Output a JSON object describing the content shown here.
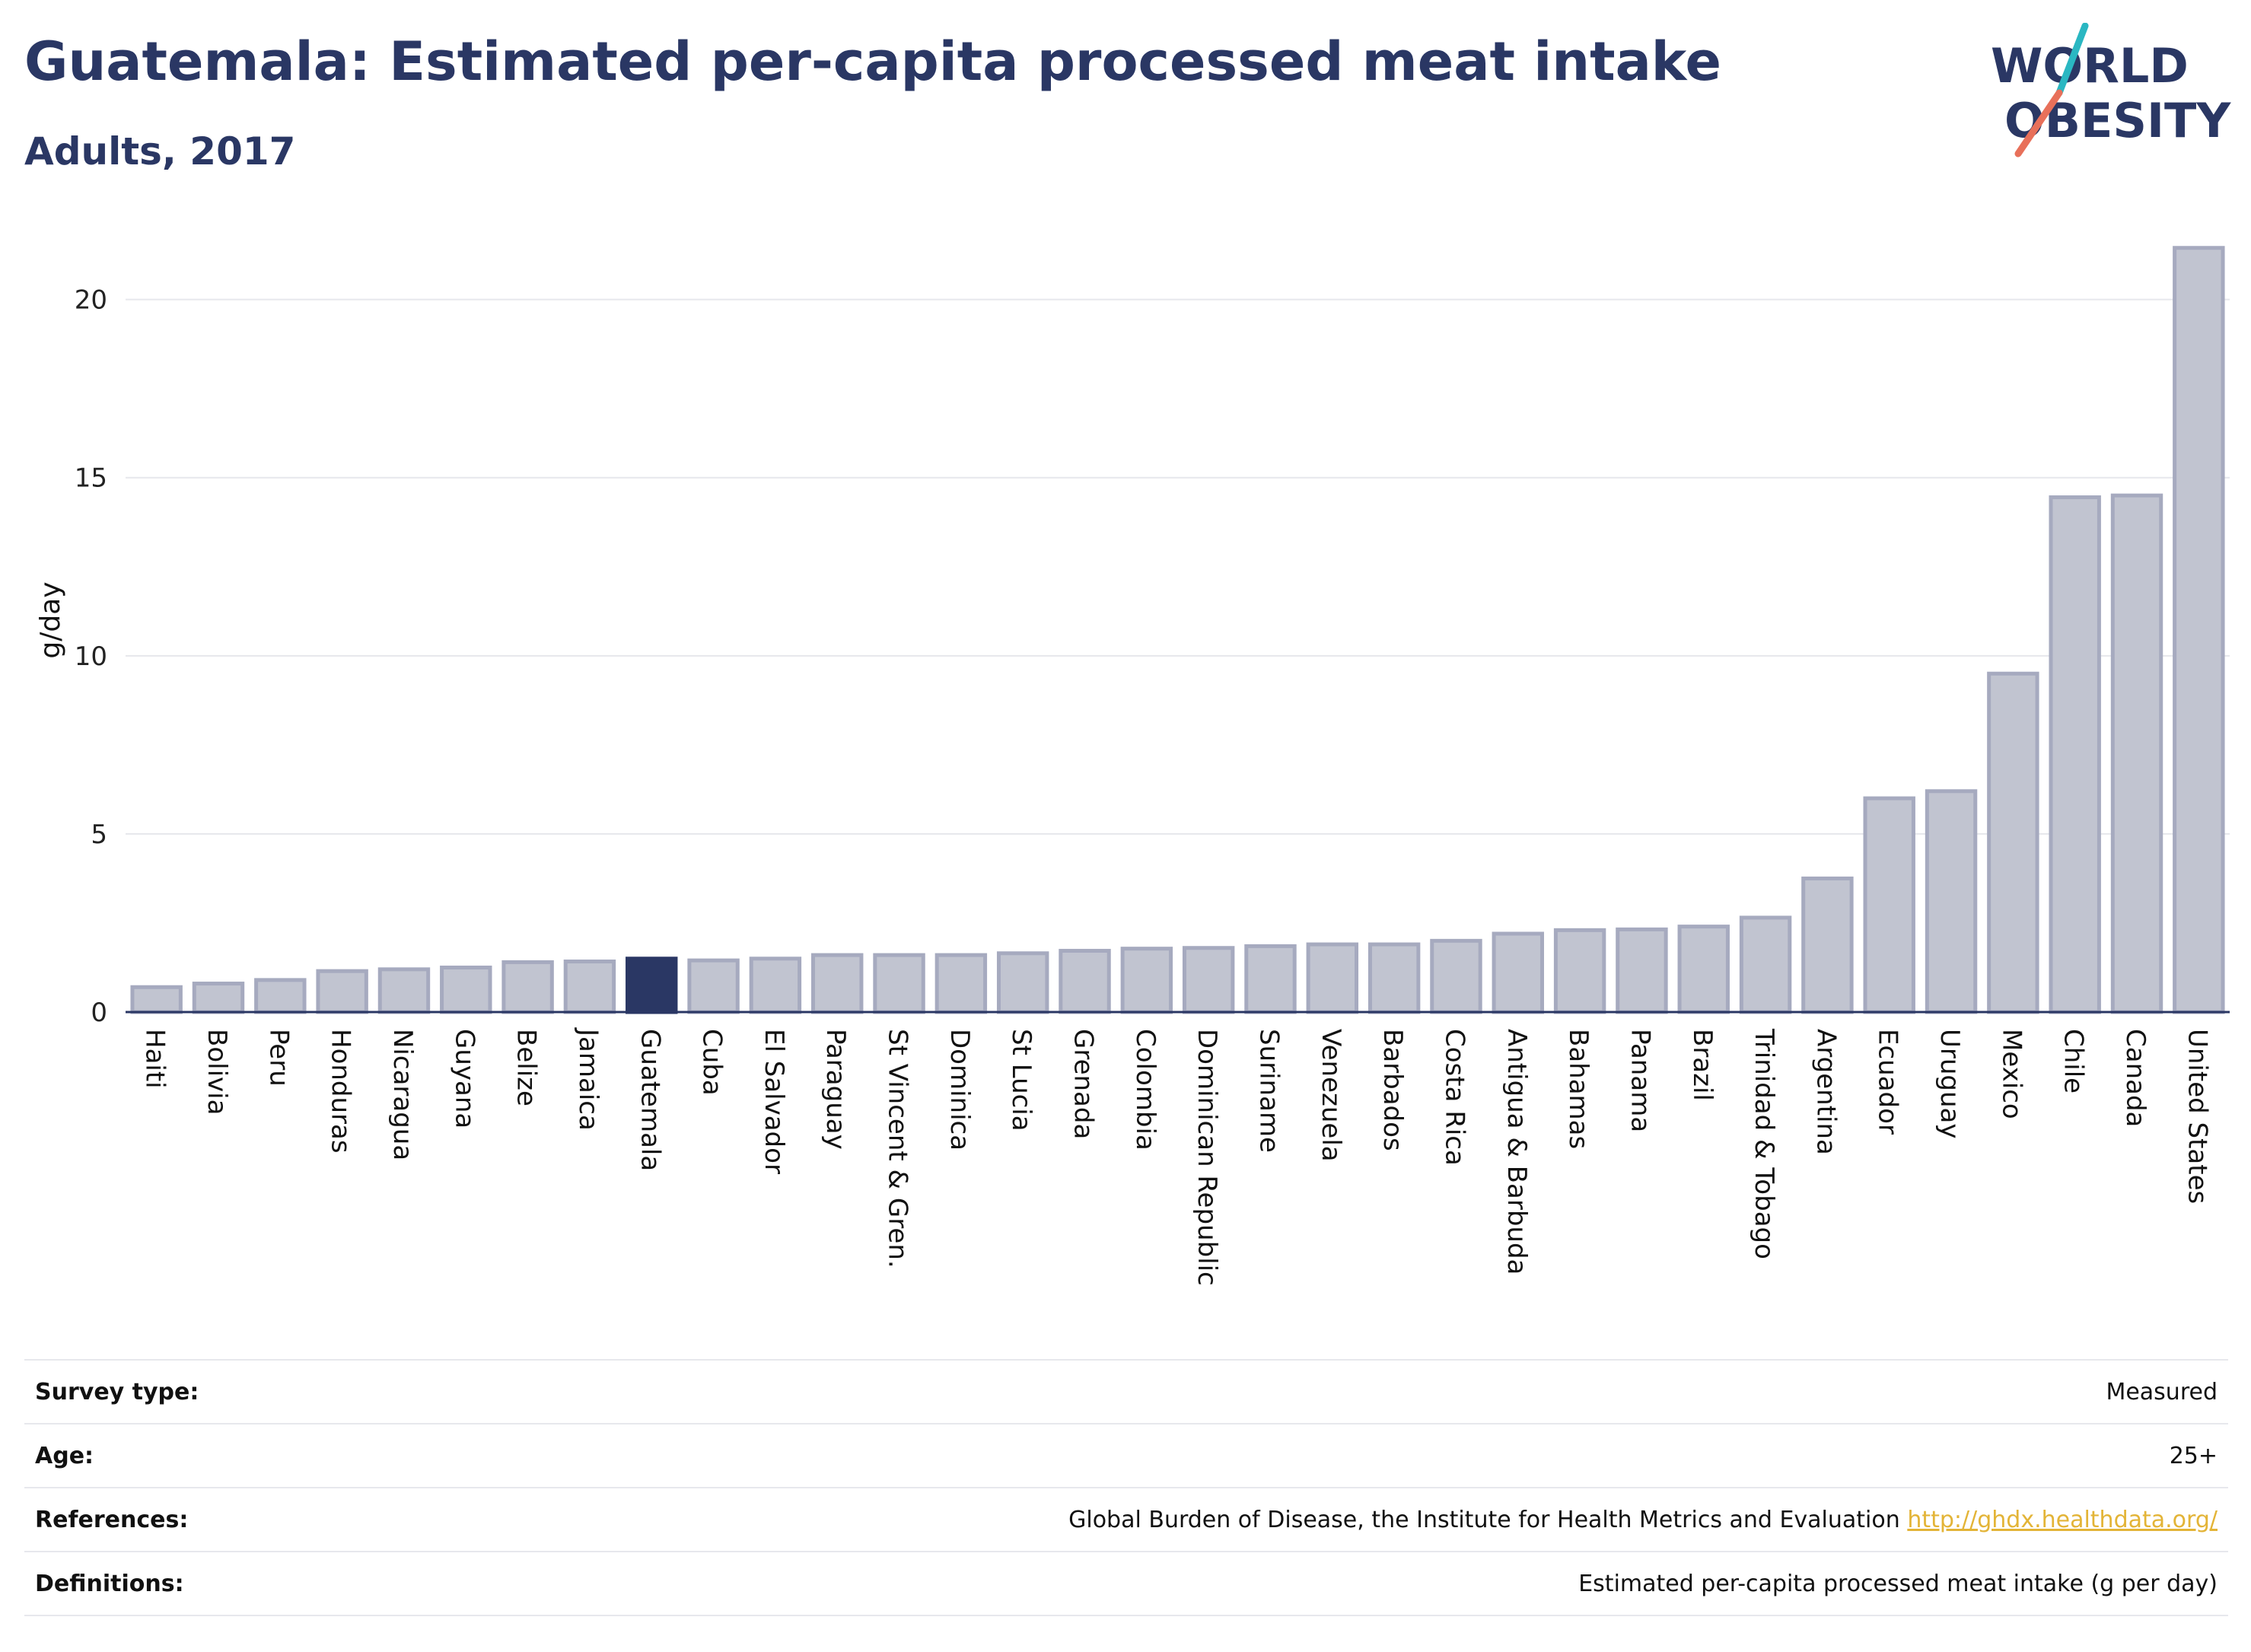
{
  "header": {
    "title": "Guatemala: Estimated per-capita processed meat intake",
    "subtitle": "Adults, 2017"
  },
  "logo": {
    "line1": "WORLD",
    "line2": "OBESITY",
    "colors": {
      "text": "#2a3764",
      "slash_teal": "#2ab7c2",
      "slash_red": "#e8705a"
    }
  },
  "chart_data": {
    "type": "bar",
    "title": "",
    "xlabel": "",
    "ylabel": "g/day",
    "ylim": [
      0,
      22
    ],
    "yticks": [
      0,
      5,
      10,
      15,
      20
    ],
    "grid": true,
    "highlight": "Guatemala",
    "colors": {
      "bar": "#c1c4d0",
      "bar_edge": "#a6aabf",
      "highlight": "#2a3764",
      "grid": "#e6e7ec",
      "axis": "#2a3764"
    },
    "categories": [
      "Haiti",
      "Bolivia",
      "Peru",
      "Honduras",
      "Nicaragua",
      "Guyana",
      "Belize",
      "Jamaica",
      "Guatemala",
      "Cuba",
      "El Salvador",
      "Paraguay",
      "St Vincent & Gren.",
      "Dominica",
      "St Lucia",
      "Grenada",
      "Colombia",
      "Dominican Republic",
      "Suriname",
      "Venezuela",
      "Barbados",
      "Costa Rica",
      "Antigua & Barbuda",
      "Bahamas",
      "Panama",
      "Brazil",
      "Trinidad & Tobago",
      "Argentina",
      "Ecuador",
      "Uruguay",
      "Mexico",
      "Chile",
      "Canada",
      "United States"
    ],
    "values": [
      0.7,
      0.8,
      0.9,
      1.15,
      1.2,
      1.25,
      1.4,
      1.42,
      1.5,
      1.45,
      1.5,
      1.6,
      1.6,
      1.6,
      1.65,
      1.72,
      1.78,
      1.8,
      1.85,
      1.9,
      1.9,
      2.0,
      2.2,
      2.3,
      2.32,
      2.4,
      2.65,
      3.75,
      6.0,
      6.2,
      9.5,
      14.45,
      14.5,
      21.45
    ]
  },
  "meta": {
    "survey_type_label": "Survey type:",
    "survey_type_value": "Measured",
    "age_label": "Age:",
    "age_value": "25+",
    "references_label": "References:",
    "references_text": "Global Burden of Disease, the Institute for Health Metrics and Evaluation",
    "references_link": "http://ghdx.healthdata.org/",
    "definitions_label": "Definitions:",
    "definitions_value": "Estimated per-capita processed meat intake (g per day)"
  }
}
